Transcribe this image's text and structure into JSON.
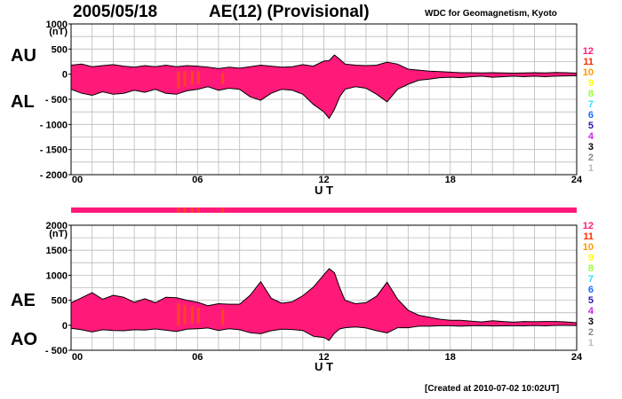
{
  "header": {
    "date": "2005/05/18",
    "title": "AE(12) (Provisional)",
    "source": "WDC for Geomagnetism, Kyoto"
  },
  "footer": {
    "created": "[Created at 2010-07-02 10:02UT]"
  },
  "colors": {
    "fill": "#ff1a7a",
    "grid": "#bbbbbb",
    "highlight": "#ff4422",
    "station_count": {
      "12": "#ff1a7a",
      "11": "#ff2a00",
      "10": "#ff9900",
      "9": "#ffff00",
      "8": "#99ff33",
      "7": "#33ddff",
      "6": "#1a6cff",
      "5": "#2a18b0",
      "4": "#cc22ee",
      "3": "#000000",
      "2": "#888888",
      "1": "#bbbbbb"
    }
  },
  "station_scale": [
    "12",
    "11",
    "10",
    "9",
    "8",
    "7",
    "6",
    "5",
    "4",
    "3",
    "2",
    "1"
  ],
  "panel_labels": {
    "top": {
      "upper": "AU",
      "lower": "AL"
    },
    "bottom": {
      "upper": "AE",
      "lower": "AO"
    }
  },
  "chart_data": [
    {
      "type": "area",
      "panel": "top",
      "unit": "(nT)",
      "xlabel": "U T",
      "xlim": [
        0,
        24
      ],
      "x_ticks": [
        "00",
        "06",
        "12",
        "18",
        "24"
      ],
      "ylim": [
        -2000,
        1000
      ],
      "y_ticks": [
        "1000",
        "500",
        "0",
        "- 500",
        "- 1000",
        "- 1500",
        "- 2000"
      ],
      "grid": true,
      "x": [
        0,
        0.5,
        1,
        1.5,
        2,
        2.5,
        3,
        3.5,
        4,
        4.5,
        5,
        5.5,
        6,
        6.5,
        7,
        7.5,
        8,
        8.5,
        9,
        9.5,
        10,
        10.5,
        11,
        11.5,
        12,
        12.25,
        12.5,
        12.75,
        13,
        13.5,
        14,
        14.5,
        15,
        15.5,
        16,
        16.5,
        17,
        17.5,
        18,
        18.5,
        19,
        19.5,
        20,
        20.5,
        21,
        21.5,
        22,
        22.5,
        23,
        23.5,
        24
      ],
      "series": [
        {
          "name": "AU",
          "values": [
            180,
            200,
            150,
            170,
            190,
            160,
            140,
            170,
            150,
            180,
            150,
            170,
            160,
            140,
            110,
            140,
            120,
            150,
            180,
            160,
            140,
            150,
            190,
            160,
            260,
            270,
            380,
            300,
            200,
            180,
            170,
            180,
            240,
            200,
            100,
            80,
            60,
            50,
            40,
            30,
            30,
            25,
            30,
            25,
            20,
            25,
            30,
            25,
            35,
            30,
            20
          ]
        },
        {
          "name": "AL",
          "values": [
            -300,
            -380,
            -420,
            -350,
            -400,
            -380,
            -320,
            -360,
            -300,
            -380,
            -400,
            -330,
            -300,
            -250,
            -320,
            -280,
            -300,
            -450,
            -520,
            -380,
            -300,
            -320,
            -400,
            -600,
            -750,
            -880,
            -700,
            -450,
            -300,
            -250,
            -280,
            -400,
            -550,
            -300,
            -200,
            -120,
            -100,
            -70,
            -60,
            -70,
            -50,
            -40,
            -60,
            -50,
            -40,
            -50,
            -40,
            -50,
            -40,
            -35,
            -30
          ]
        }
      ],
      "highlight_hours": [
        5.1,
        5.4,
        5.75,
        6.05,
        7.2
      ]
    },
    {
      "type": "area",
      "panel": "bottom",
      "unit": "(nT)",
      "xlabel": "U T",
      "xlim": [
        0,
        24
      ],
      "x_ticks": [
        "00",
        "06",
        "12",
        "18",
        "24"
      ],
      "ylim": [
        -500,
        2000
      ],
      "y_ticks": [
        "2000",
        "1500",
        "1000",
        "500",
        "0",
        "- 500"
      ],
      "grid": true,
      "x": [
        0,
        0.5,
        1,
        1.5,
        2,
        2.5,
        3,
        3.5,
        4,
        4.5,
        5,
        5.5,
        6,
        6.5,
        7,
        7.5,
        8,
        8.5,
        9,
        9.5,
        10,
        10.5,
        11,
        11.5,
        12,
        12.25,
        12.5,
        12.75,
        13,
        13.5,
        14,
        14.5,
        15,
        15.5,
        16,
        16.5,
        17,
        17.5,
        18,
        18.5,
        19,
        19.5,
        20,
        20.5,
        21,
        21.5,
        22,
        22.5,
        23,
        23.5,
        24
      ],
      "series": [
        {
          "name": "AE",
          "values": [
            450,
            550,
            650,
            520,
            600,
            560,
            460,
            530,
            450,
            560,
            550,
            500,
            460,
            390,
            430,
            420,
            420,
            600,
            870,
            540,
            440,
            470,
            590,
            760,
            1010,
            1130,
            1050,
            750,
            500,
            430,
            450,
            580,
            860,
            520,
            300,
            200,
            160,
            120,
            100,
            100,
            80,
            65,
            90,
            75,
            60,
            75,
            70,
            75,
            75,
            65,
            50
          ]
        },
        {
          "name": "AO",
          "values": [
            -60,
            -90,
            -135,
            -90,
            -105,
            -110,
            -90,
            -95,
            -75,
            -100,
            -125,
            -80,
            -70,
            -55,
            -105,
            -70,
            -90,
            -150,
            -170,
            -110,
            -80,
            -85,
            -105,
            -220,
            -245,
            -305,
            -160,
            -75,
            -50,
            -35,
            -55,
            -110,
            -155,
            -50,
            -50,
            -20,
            -20,
            -10,
            -10,
            -20,
            -10,
            -8,
            -15,
            -12,
            -10,
            -12,
            -5,
            -12,
            -3,
            -3,
            -5
          ]
        }
      ],
      "highlight_hours": [
        5.1,
        5.4,
        5.75,
        6.05,
        7.2
      ]
    }
  ]
}
